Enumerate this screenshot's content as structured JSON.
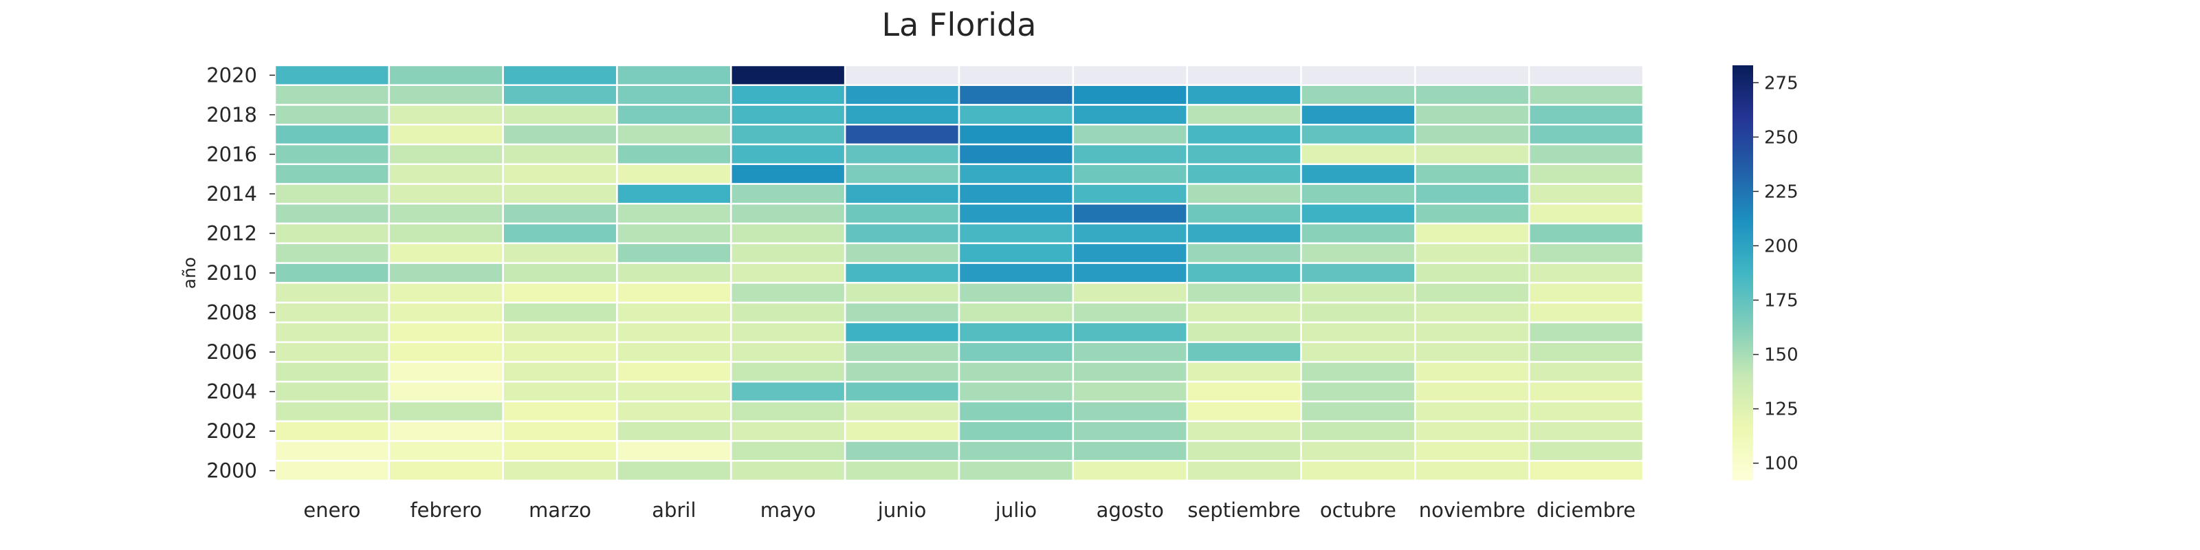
{
  "chart_data": {
    "type": "heatmap",
    "title": "La Florida",
    "ylabel": "año",
    "xlabel": "",
    "x": [
      "enero",
      "febrero",
      "marzo",
      "abril",
      "mayo",
      "junio",
      "julio",
      "agosto",
      "septiembre",
      "octubre",
      "noviembre",
      "diciembre"
    ],
    "y": [
      2020,
      2019,
      2018,
      2017,
      2016,
      2015,
      2014,
      2013,
      2012,
      2011,
      2010,
      2009,
      2008,
      2007,
      2006,
      2005,
      2004,
      2003,
      2002,
      2001,
      2000
    ],
    "y_tick_labels": [
      "2020",
      "2018",
      "2016",
      "2014",
      "2012",
      "2010",
      "2008",
      "2006",
      "2004",
      "2002",
      "2000"
    ],
    "values": [
      [
        185,
        160,
        185,
        165,
        282,
        null,
        null,
        null,
        null,
        null,
        null,
        null
      ],
      [
        150,
        150,
        175,
        165,
        190,
        205,
        225,
        210,
        200,
        155,
        155,
        150
      ],
      [
        150,
        130,
        135,
        165,
        185,
        200,
        185,
        200,
        145,
        205,
        150,
        165
      ],
      [
        170,
        120,
        150,
        145,
        180,
        240,
        210,
        155,
        185,
        175,
        150,
        165
      ],
      [
        160,
        140,
        135,
        160,
        185,
        175,
        215,
        180,
        180,
        125,
        130,
        150
      ],
      [
        160,
        130,
        125,
        120,
        210,
        165,
        195,
        170,
        180,
        200,
        160,
        140
      ],
      [
        140,
        130,
        130,
        190,
        155,
        195,
        205,
        185,
        150,
        160,
        165,
        130
      ],
      [
        150,
        145,
        155,
        145,
        150,
        170,
        205,
        225,
        170,
        190,
        160,
        120
      ],
      [
        135,
        140,
        165,
        145,
        140,
        175,
        185,
        195,
        195,
        160,
        120,
        160
      ],
      [
        145,
        120,
        130,
        155,
        135,
        150,
        190,
        205,
        155,
        145,
        130,
        145
      ],
      [
        160,
        150,
        140,
        135,
        130,
        185,
        205,
        205,
        180,
        175,
        135,
        130
      ],
      [
        130,
        120,
        115,
        115,
        145,
        135,
        150,
        130,
        145,
        135,
        140,
        120
      ],
      [
        130,
        120,
        140,
        125,
        135,
        150,
        140,
        145,
        130,
        135,
        130,
        120
      ],
      [
        130,
        115,
        125,
        125,
        130,
        190,
        180,
        180,
        135,
        130,
        130,
        145
      ],
      [
        130,
        115,
        120,
        125,
        130,
        150,
        165,
        155,
        170,
        130,
        130,
        140
      ],
      [
        135,
        105,
        125,
        115,
        140,
        150,
        150,
        150,
        125,
        145,
        120,
        130
      ],
      [
        135,
        105,
        125,
        125,
        175,
        170,
        150,
        145,
        115,
        145,
        120,
        120
      ],
      [
        135,
        140,
        115,
        125,
        140,
        130,
        160,
        155,
        115,
        145,
        125,
        125
      ],
      [
        115,
        105,
        115,
        135,
        130,
        120,
        160,
        155,
        130,
        140,
        125,
        130
      ],
      [
        105,
        110,
        115,
        105,
        140,
        155,
        155,
        155,
        135,
        130,
        120,
        135
      ],
      [
        105,
        115,
        125,
        140,
        135,
        140,
        145,
        120,
        130,
        120,
        120,
        115
      ]
    ],
    "colorscale": "YlGnBu",
    "vmin": 92,
    "vmax": 283,
    "colorbar_ticks": [
      100,
      125,
      150,
      175,
      200,
      225,
      250,
      275
    ],
    "colorbar_tick_labels": [
      "100",
      "125",
      "150",
      "175",
      "200",
      "225",
      "250",
      "275"
    ],
    "missing_color": "#eaeaf2",
    "cell_border_color": "#ffffff"
  }
}
